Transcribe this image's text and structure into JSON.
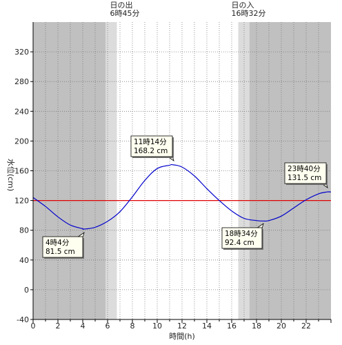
{
  "chart_data": {
    "type": "line",
    "xlabel": "時間(h)",
    "ylabel": "水位(cm)",
    "xlim": [
      0,
      24
    ],
    "ylim": [
      -40,
      360
    ],
    "x_ticks": [
      0,
      2,
      4,
      6,
      8,
      10,
      12,
      14,
      16,
      18,
      20,
      22
    ],
    "x_tick_labels": [
      "0",
      "2",
      "4",
      "6",
      "8",
      "10",
      "12",
      "14",
      "16",
      "18",
      "20",
      "22"
    ],
    "y_ticks": [
      -40,
      0,
      40,
      80,
      120,
      160,
      200,
      240,
      280,
      320
    ],
    "y_tick_labels": [
      "-40",
      "0",
      "40",
      "80",
      "120",
      "160",
      "200",
      "240",
      "280",
      "320"
    ],
    "grid": true,
    "reference_line": {
      "value": 120,
      "color": "#e00000"
    },
    "sunrise": {
      "label": "日の出",
      "time": "6時45分",
      "hour": 6.75
    },
    "sunset": {
      "label": "日の入",
      "time": "16時32分",
      "hour": 16.53
    },
    "series": [
      {
        "color": "#0000cc",
        "x": [
          0,
          1,
          2,
          3,
          4,
          4.07,
          5,
          6,
          7,
          8,
          9,
          10,
          11,
          11.23,
          12,
          13,
          14,
          15,
          16,
          17,
          18,
          18.57,
          19,
          20,
          21,
          22,
          23,
          23.67,
          24
        ],
        "y": [
          124,
          112,
          98,
          87,
          82,
          81.5,
          84,
          92,
          105,
          125,
          147,
          163,
          167.5,
          168.2,
          165,
          153,
          136,
          120,
          106,
          96,
          93,
          92.4,
          93,
          99,
          110,
          121,
          129,
          131.5,
          131.5
        ]
      }
    ],
    "annotations": [
      {
        "name": "low-1",
        "line1": "4時4分",
        "line2": "81.5 cm",
        "x": 4.07,
        "y": 81.5
      },
      {
        "name": "high-1",
        "line1": "11時14分",
        "line2": "168.2 cm",
        "x": 11.23,
        "y": 168.2
      },
      {
        "name": "low-2",
        "line1": "18時34分",
        "line2": "92.4 cm",
        "x": 18.57,
        "y": 92.4
      },
      {
        "name": "last",
        "line1": "23時40分",
        "line2": "131.5 cm",
        "x": 23.67,
        "y": 131.5
      }
    ],
    "colors": {
      "night": "#c0c0c0",
      "twilight": "#dcdcdc",
      "day": "#ffffff",
      "callout_fill": "#fffff0"
    }
  }
}
